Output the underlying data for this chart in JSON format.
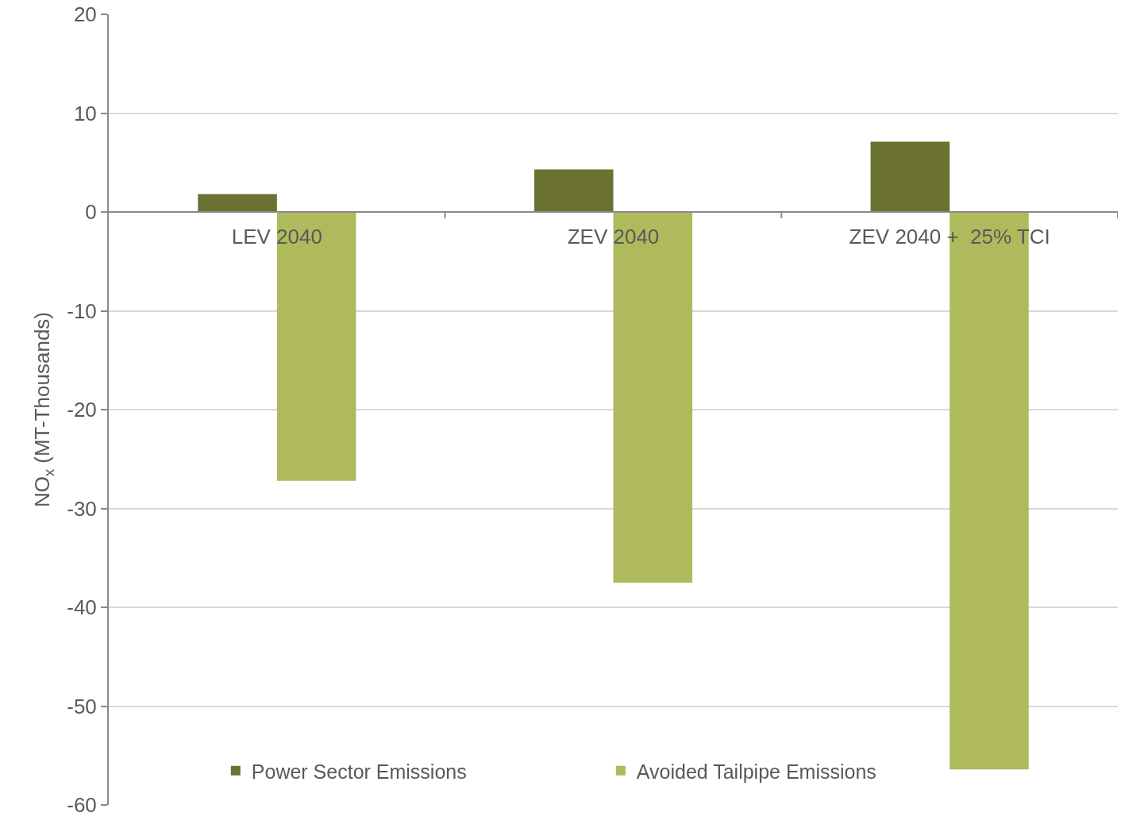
{
  "chart_data": {
    "type": "bar",
    "ylabel": "NO$_{x}$ (MT-Thousands)",
    "categories": [
      "LEV 2040",
      "ZEV 2040",
      "ZEV 2040 +  25% TCI"
    ],
    "series": [
      {
        "name": "Power Sector Emissions",
        "color": "#6a7131",
        "values": [
          1.8,
          4.3,
          7.1
        ]
      },
      {
        "name": "Avoided Tailpipe Emissions",
        "color": "#afba5d",
        "values": [
          -27.2,
          -37.5,
          -56.4
        ]
      }
    ],
    "ylim": [
      -60,
      20
    ],
    "yticks": [
      -60,
      -50,
      -40,
      -30,
      -20,
      -10,
      0,
      10,
      20
    ],
    "grid": "y",
    "legend": "bottom"
  }
}
